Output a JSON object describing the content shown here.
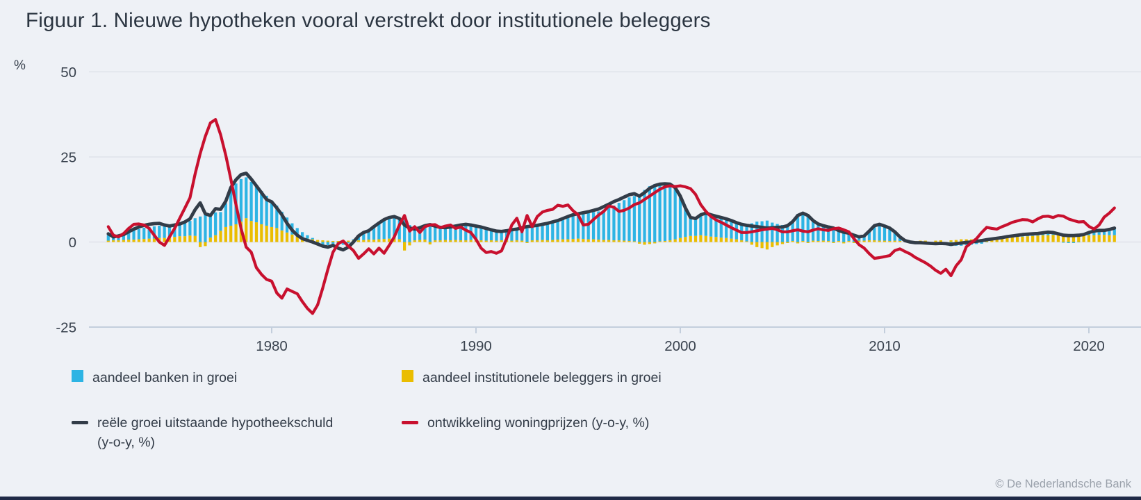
{
  "title": "Figuur 1. Nieuwe hypotheken vooral verstrekt door institutionele beleggers",
  "copyright": "© De Nederlandsche Bank",
  "colors": {
    "background": "#EEF1F6",
    "banks_blue": "#2DB4E4",
    "institutional_yellow": "#EABD00",
    "mortgage_dark": "#323C48",
    "houseprice_red": "#C8102E",
    "grid": "#DBE0E8",
    "axis": "#C3CEDC",
    "text": "#39424E"
  },
  "y_axis": {
    "unit": "%",
    "ticks": [
      50,
      25,
      0,
      -25
    ]
  },
  "x_axis": {
    "ticks": [
      1980,
      1990,
      2000,
      2010,
      2020
    ]
  },
  "legend": {
    "items": [
      {
        "label": "aandeel banken in groei",
        "swatch": "box",
        "color": "#2DB4E4"
      },
      {
        "label": "aandeel institutionele beleggers in groei",
        "swatch": "box",
        "color": "#EABD00"
      },
      {
        "label": "reële groei uitstaande hypotheekschuld (y-o-y, %)",
        "swatch": "line",
        "color": "#323C48"
      },
      {
        "label": "ontwikkeling woningprijzen (y-o-y, %)",
        "swatch": "line",
        "color": "#C8102E"
      }
    ]
  },
  "chart_data": {
    "type": "bar",
    "subtype": "stacked-bars-with-lines",
    "x_start": 1972.0,
    "x_step": 0.25,
    "xlim": [
      1971.3,
      2021.8
    ],
    "ylim": [
      -25,
      50
    ],
    "grid": true,
    "legend_position": "bottom",
    "series": [
      {
        "name": "aandeel banken in groei",
        "type": "bar",
        "color": "#2DB4E4",
        "values": [
          1.6,
          1.2,
          1.3,
          1.7,
          2.4,
          2.8,
          3.0,
          3.3,
          3.4,
          3.6,
          3.6,
          3.4,
          3.3,
          3.5,
          3.8,
          4.0,
          4.3,
          5.2,
          7.5,
          8.0,
          6.5,
          6.7,
          5.5,
          7.0,
          10.5,
          12.0,
          12.5,
          12.0,
          11.5,
          10.5,
          9.8,
          8.8,
          7.8,
          6.6,
          5.5,
          4.4,
          3.3,
          2.5,
          1.7,
          1.0,
          0.4,
          -0.5,
          -0.8,
          -0.9,
          -0.8,
          -1.0,
          -0.8,
          -0.4,
          0.3,
          1.4,
          2.2,
          2.7,
          3.8,
          4.8,
          5.6,
          6.2,
          6.5,
          6.0,
          6.5,
          5.0,
          3.2,
          3.6,
          4.0,
          5.5,
          4.2,
          3.8,
          3.6,
          3.9,
          4.1,
          4.5,
          4.6,
          4.4,
          4.1,
          3.9,
          3.6,
          3.2,
          2.7,
          2.6,
          2.9,
          3.1,
          3.3,
          3.7,
          4.0,
          4.2,
          4.4,
          4.7,
          5.0,
          5.4,
          5.8,
          6.2,
          6.6,
          7.0,
          7.2,
          7.4,
          7.7,
          8.0,
          8.3,
          8.9,
          9.5,
          10.2,
          11.0,
          11.9,
          12.8,
          13.3,
          14.0,
          15.3,
          16.4,
          17.0,
          16.8,
          16.8,
          16.5,
          15.2,
          12.3,
          8.5,
          5.4,
          5.1,
          6.0,
          6.7,
          6.4,
          6.1,
          5.9,
          5.6,
          5.3,
          4.9,
          4.7,
          4.7,
          5.5,
          6.0,
          6.1,
          6.3,
          5.7,
          5.3,
          5.0,
          5.1,
          5.7,
          8.2,
          8.2,
          8.1,
          5.9,
          5.0,
          4.4,
          4.1,
          4.4,
          3.1,
          3.3,
          2.3,
          2.3,
          1.1,
          1.4,
          2.7,
          4.3,
          4.8,
          4.3,
          3.8,
          2.6,
          1.2,
          0.1,
          -0.4,
          -0.5,
          -0.6,
          -0.7,
          -0.3,
          -0.9,
          -0.9,
          -0.4,
          -1.2,
          -1.1,
          -1.1,
          -0.9,
          -0.8,
          -0.6,
          -0.5,
          -0.1,
          0.0,
          0.2,
          0.3,
          0.4,
          0.4,
          0.5,
          0.6,
          0.6,
          0.6,
          0.6,
          0.7,
          0.9,
          0.7,
          0.3,
          -0.2,
          -0.3,
          -0.3,
          -0.1,
          0.1,
          0.8,
          1.2,
          1.3,
          1.3,
          1.7,
          2.1
        ]
      },
      {
        "name": "aandeel institutionele beleggers in groei",
        "type": "bar",
        "color": "#EABD00",
        "values": [
          0.4,
          0.5,
          0.5,
          0.6,
          0.7,
          0.7,
          0.8,
          0.9,
          1.0,
          1.0,
          1.2,
          1.2,
          1.3,
          1.5,
          1.7,
          1.7,
          1.9,
          1.8,
          -1.5,
          -1.2,
          1.3,
          2.0,
          3.3,
          4.4,
          4.8,
          5.2,
          6.0,
          7.0,
          6.2,
          5.8,
          5.2,
          4.8,
          4.4,
          4.1,
          3.4,
          2.8,
          2.2,
          1.6,
          1.2,
          1.0,
          0.8,
          0.6,
          0.5,
          0.4,
          0.3,
          0.3,
          0.4,
          0.4,
          0.5,
          0.5,
          0.6,
          0.7,
          0.7,
          0.8,
          0.9,
          1.0,
          1.0,
          0.8,
          -2.5,
          -1.0,
          0.5,
          0.6,
          0.7,
          -0.7,
          0.5,
          0.5,
          0.6,
          0.5,
          0.6,
          0.5,
          0.5,
          0.6,
          0.5,
          0.5,
          0.4,
          0.5,
          0.4,
          0.5,
          0.5,
          0.4,
          0.5,
          0.4,
          -0.3,
          0.5,
          0.5,
          0.6,
          0.5,
          0.6,
          0.7,
          0.8,
          0.8,
          0.9,
          1.0,
          0.9,
          0.8,
          0.8,
          0.7,
          0.6,
          0.6,
          0.5,
          0.5,
          0.4,
          0.3,
          0.2,
          -0.5,
          -0.8,
          -0.6,
          -0.4,
          0.2,
          0.3,
          0.5,
          0.8,
          1.2,
          1.5,
          1.8,
          1.8,
          2.0,
          1.8,
          1.6,
          1.5,
          1.3,
          1.2,
          1.0,
          0.8,
          0.5,
          0.2,
          -0.8,
          -1.5,
          -1.8,
          -2.2,
          -1.5,
          -1.0,
          -0.6,
          -0.3,
          0.3,
          -0.4,
          0.3,
          -0.3,
          0.4,
          0.3,
          0.4,
          0.3,
          -0.3,
          0.3,
          -0.4,
          0.3,
          -0.3,
          0.4,
          0.4,
          0.5,
          0.5,
          0.4,
          0.4,
          0.3,
          0.4,
          0.3,
          0.3,
          0.4,
          0.3,
          0.4,
          0.4,
          -0.4,
          0.4,
          0.5,
          -0.4,
          0.5,
          0.6,
          0.8,
          0.8,
          0.8,
          0.8,
          0.9,
          0.8,
          0.9,
          0.9,
          1.0,
          1.2,
          1.4,
          1.5,
          1.6,
          1.7,
          1.8,
          1.9,
          2.0,
          2.0,
          2.1,
          2.1,
          2.2,
          2.2,
          2.2,
          2.1,
          2.1,
          2.0,
          2.0,
          2.1,
          2.1,
          2.0,
          2.0
        ]
      },
      {
        "name": "reële groei uitstaande hypotheekschuld (y-o-y, %)",
        "type": "line",
        "color": "#323C48",
        "values": [
          2.4,
          1.5,
          1.8,
          2.2,
          3.0,
          3.8,
          4.4,
          4.9,
          5.2,
          5.4,
          5.5,
          5.0,
          4.7,
          5.0,
          5.3,
          5.9,
          6.8,
          9.5,
          11.5,
          8.3,
          7.8,
          9.8,
          9.6,
          12.0,
          16.0,
          18.3,
          19.8,
          20.2,
          18.5,
          16.5,
          14.5,
          12.5,
          11.8,
          10.0,
          8.0,
          5.5,
          3.5,
          2.0,
          1.0,
          0.5,
          0.0,
          -0.6,
          -1.2,
          -1.5,
          -1.0,
          -1.8,
          -2.3,
          -1.5,
          0.0,
          1.8,
          2.8,
          3.3,
          4.5,
          5.6,
          6.6,
          7.2,
          7.5,
          6.9,
          5.0,
          4.1,
          3.8,
          4.2,
          4.8,
          5.1,
          4.7,
          4.3,
          4.2,
          4.4,
          4.7,
          5.0,
          5.2,
          5.0,
          4.7,
          4.4,
          4.0,
          3.6,
          3.2,
          3.1,
          3.3,
          3.6,
          3.8,
          4.2,
          4.5,
          4.7,
          4.9,
          5.2,
          5.5,
          5.9,
          6.3,
          6.9,
          7.5,
          8.0,
          8.3,
          8.6,
          8.9,
          9.3,
          9.7,
          10.4,
          11.1,
          11.9,
          12.5,
          13.2,
          13.9,
          14.2,
          13.5,
          14.5,
          15.8,
          16.6,
          17.0,
          17.1,
          17.0,
          16.0,
          13.5,
          10.0,
          7.2,
          6.9,
          8.0,
          8.5,
          8.0,
          7.6,
          7.2,
          6.8,
          6.3,
          5.7,
          5.2,
          4.9,
          4.7,
          4.5,
          4.3,
          4.1,
          4.2,
          4.3,
          4.4,
          4.8,
          6.0,
          7.8,
          8.5,
          7.8,
          6.3,
          5.3,
          4.8,
          4.4,
          4.1,
          3.4,
          2.9,
          2.6,
          2.0,
          1.5,
          1.8,
          3.2,
          4.8,
          5.2,
          4.7,
          4.1,
          3.0,
          1.5,
          0.4,
          0.0,
          -0.2,
          -0.2,
          -0.3,
          -0.4,
          -0.5,
          -0.4,
          -0.5,
          -0.7,
          -0.5,
          -0.3,
          -0.1,
          0.0,
          0.2,
          0.4,
          0.7,
          0.9,
          1.1,
          1.3,
          1.6,
          1.8,
          2.0,
          2.2,
          2.3,
          2.4,
          2.5,
          2.7,
          2.9,
          2.8,
          2.4,
          2.0,
          1.9,
          1.9,
          2.0,
          2.2,
          2.8,
          3.2,
          3.4,
          3.4,
          3.7,
          4.1
        ]
      },
      {
        "name": "ontwikkeling woningprijzen (y-o-y, %)",
        "type": "line",
        "color": "#C8102E",
        "values": [
          4.5,
          2.0,
          1.5,
          2.5,
          4.0,
          5.2,
          5.3,
          5.0,
          4.0,
          2.0,
          0.0,
          -1.0,
          1.5,
          4.0,
          7.0,
          10.0,
          13.0,
          20.0,
          26.0,
          31.0,
          35.0,
          36.0,
          31.5,
          25.5,
          18.5,
          11.0,
          4.0,
          -1.5,
          -3.0,
          -7.5,
          -9.5,
          -11.0,
          -11.5,
          -15.0,
          -16.5,
          -13.8,
          -14.5,
          -15.2,
          -17.5,
          -19.5,
          -21.0,
          -18.5,
          -13.5,
          -8.0,
          -3.0,
          -0.5,
          0.3,
          -1.2,
          -2.5,
          -4.8,
          -3.5,
          -2.0,
          -3.5,
          -1.8,
          -3.3,
          -1.0,
          1.5,
          5.0,
          7.8,
          3.2,
          4.5,
          2.8,
          4.5,
          5.0,
          5.1,
          4.2,
          4.7,
          5.0,
          4.0,
          4.4,
          3.5,
          2.8,
          0.8,
          -1.8,
          -3.1,
          -2.8,
          -3.3,
          -2.6,
          1.0,
          5.0,
          7.0,
          3.0,
          7.8,
          4.5,
          7.5,
          8.8,
          9.3,
          9.6,
          10.8,
          10.5,
          10.9,
          9.2,
          8.0,
          5.0,
          5.2,
          6.6,
          7.9,
          9.0,
          10.6,
          10.2,
          9.0,
          9.3,
          10.0,
          11.0,
          11.5,
          12.5,
          13.5,
          14.5,
          15.5,
          16.2,
          16.5,
          16.3,
          16.5,
          16.2,
          15.7,
          14.0,
          11.0,
          9.0,
          7.5,
          6.5,
          5.8,
          5.0,
          4.2,
          3.5,
          2.8,
          2.8,
          3.0,
          3.3,
          3.6,
          3.8,
          4.0,
          3.6,
          3.0,
          3.0,
          3.3,
          3.6,
          3.2,
          3.0,
          3.5,
          3.9,
          3.6,
          3.4,
          3.9,
          4.1,
          3.6,
          3.0,
          1.0,
          -0.8,
          -1.8,
          -3.4,
          -4.8,
          -4.6,
          -4.3,
          -4.0,
          -2.5,
          -2.0,
          -2.8,
          -3.5,
          -4.5,
          -5.3,
          -6.1,
          -7.1,
          -8.3,
          -9.2,
          -8.0,
          -9.9,
          -7.0,
          -5.2,
          -1.4,
          -0.2,
          1.0,
          2.8,
          4.3,
          4.0,
          3.8,
          4.5,
          5.1,
          5.8,
          6.2,
          6.6,
          6.5,
          5.9,
          6.8,
          7.5,
          7.6,
          7.2,
          7.8,
          7.6,
          6.8,
          6.3,
          5.9,
          6.0,
          4.6,
          3.8,
          5.0,
          7.3,
          8.5,
          10.0
        ]
      }
    ]
  }
}
